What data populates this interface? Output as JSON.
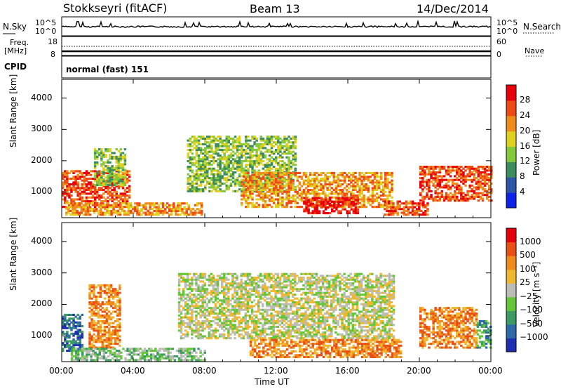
{
  "header": {
    "station": "Stokkseyri (fitACF)",
    "beam": "Beam 13",
    "date": "14/Dec/2014"
  },
  "top_panels": {
    "nsky_label": "N.Sky",
    "nsky_ticks": [
      "10^5",
      "10^0"
    ],
    "nsearch_ticks": [
      "10^5",
      "10^0"
    ],
    "nsearch_label": "N.Search",
    "freq_label": "Freq.",
    "freq_unit": "[MHz]",
    "freq_ticks": [
      "18",
      "8"
    ],
    "nave_ticks": [
      "60",
      "0"
    ],
    "nave_label": "Nave",
    "cpid_label": "CPID",
    "cpid_value": "normal (fast) 151"
  },
  "chart_data": [
    {
      "type": "heatmap",
      "title": "",
      "xlabel": "Time UT",
      "ylabel": "Slant Range [km]",
      "x_ticks": [
        "00:00",
        "04:00",
        "08:00",
        "12:00",
        "16:00",
        "20:00",
        "00:00"
      ],
      "xlim_hours": [
        0,
        24
      ],
      "y_ticks": [
        1000,
        2000,
        3000,
        4000
      ],
      "ylim": [
        180,
        4600
      ],
      "colorbar": {
        "label": "Power [dB]",
        "ticks": [
          "4",
          "8",
          "12",
          "16",
          "20",
          "24",
          "28"
        ],
        "colors": [
          "#0d22e8",
          "#2e55a6",
          "#3c8c5e",
          "#84c83c",
          "#e0d020",
          "#f08c1c",
          "#ee4a14",
          "#e8000c"
        ]
      },
      "regions": [
        {
          "t0": 0.0,
          "t1": 3.8,
          "r0": 500,
          "r1": 1700,
          "level": 6
        },
        {
          "t0": 1.8,
          "t1": 3.6,
          "r0": 1200,
          "r1": 2400,
          "level": 3
        },
        {
          "t0": 0.2,
          "t1": 7.8,
          "r0": 250,
          "r1": 650,
          "level": 5
        },
        {
          "t0": 7.0,
          "t1": 13.0,
          "r0": 1000,
          "r1": 2800,
          "level": 3
        },
        {
          "t0": 10.0,
          "t1": 18.5,
          "r0": 500,
          "r1": 1600,
          "level": 5
        },
        {
          "t0": 13.5,
          "t1": 16.5,
          "r0": 300,
          "r1": 800,
          "level": 7
        },
        {
          "t0": 18.0,
          "t1": 20.5,
          "r0": 250,
          "r1": 700,
          "level": 6
        },
        {
          "t0": 20.0,
          "t1": 24.0,
          "r0": 700,
          "r1": 1800,
          "level": 6
        }
      ]
    },
    {
      "type": "heatmap",
      "title": "",
      "xlabel": "Time UT",
      "ylabel": "Slant Range [km]",
      "x_ticks": [
        "00:00",
        "04:00",
        "08:00",
        "12:00",
        "16:00",
        "20:00",
        "00:00"
      ],
      "xlim_hours": [
        0,
        24
      ],
      "y_ticks": [
        1000,
        2000,
        3000,
        4000
      ],
      "ylim": [
        180,
        4600
      ],
      "colorbar": {
        "label": "Velocity [m s⁻¹]",
        "ticks": [
          "1000",
          "500",
          "100",
          "25",
          "−25",
          "−100",
          "−500",
          "−1000"
        ],
        "colors": [
          "#1f2fb4",
          "#2e6aa8",
          "#3c9a64",
          "#66c63a",
          "#bdbdb8",
          "#f0b830",
          "#ee8a1e",
          "#ea5016",
          "#e6000c"
        ]
      },
      "regions": [
        {
          "t0": 0.0,
          "t1": 1.2,
          "r0": 500,
          "r1": 1700,
          "level": 1
        },
        {
          "t0": 1.5,
          "t1": 3.3,
          "r0": 600,
          "r1": 2600,
          "level": 6
        },
        {
          "t0": 0.5,
          "t1": 8.0,
          "r0": 200,
          "r1": 600,
          "level": 3
        },
        {
          "t0": 6.5,
          "t1": 18.5,
          "r0": 900,
          "r1": 3000,
          "level": 4
        },
        {
          "t0": 10.5,
          "t1": 19.0,
          "r0": 300,
          "r1": 900,
          "level": 6
        },
        {
          "t0": 20.0,
          "t1": 23.2,
          "r0": 600,
          "r1": 1900,
          "level": 6
        },
        {
          "t0": 23.2,
          "t1": 24.0,
          "r0": 600,
          "r1": 1500,
          "level": 2
        }
      ]
    }
  ]
}
